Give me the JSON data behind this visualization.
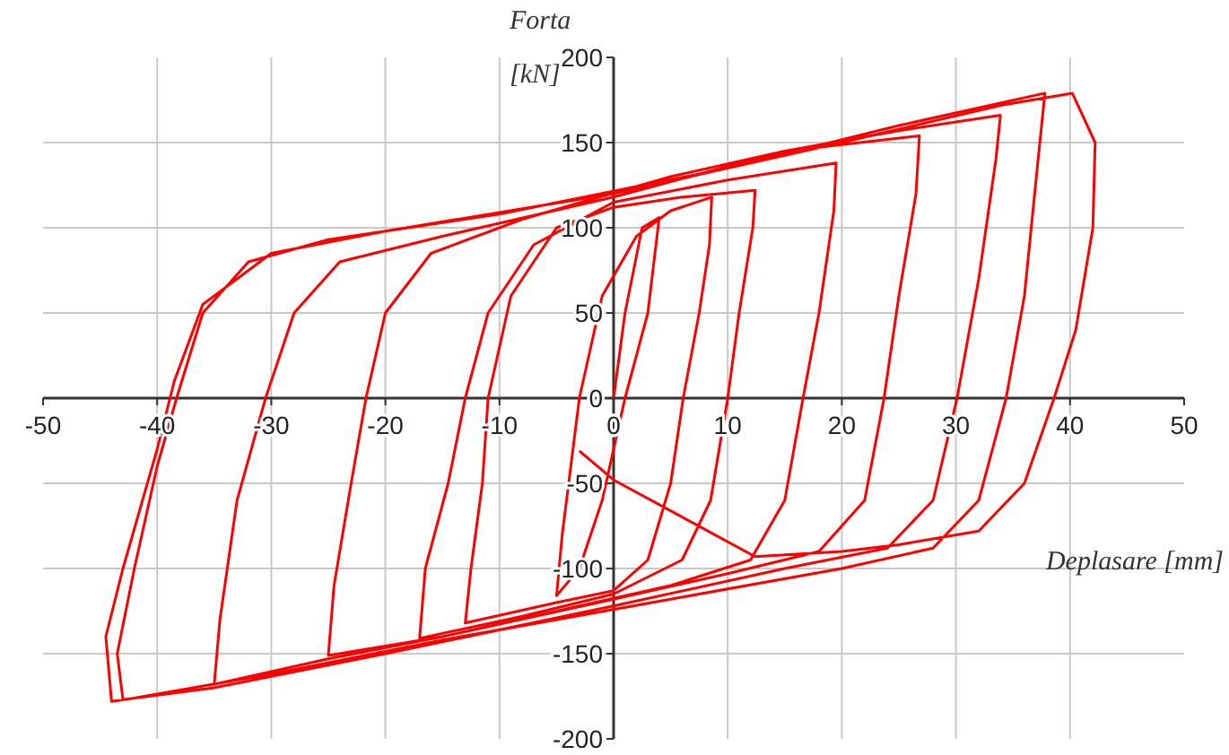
{
  "chart_data": {
    "type": "line",
    "xlabel": "Deplasare [mm]",
    "ylabel": "Forta [kN]",
    "xlim": [
      -50,
      50
    ],
    "ylim": [
      -200,
      200
    ],
    "xticks": [
      -50,
      -40,
      -30,
      -20,
      -10,
      0,
      10,
      20,
      30,
      40,
      50
    ],
    "yticks": [
      -200,
      -150,
      -100,
      -50,
      0,
      50,
      100,
      150,
      200
    ],
    "grid": true,
    "marker": "none",
    "line_style": "solid",
    "series": [
      {
        "color": "#ff0000",
        "x": [
          0,
          1,
          2.5,
          4,
          3,
          1,
          -1,
          -3,
          -5,
          -4.5,
          -3,
          -1,
          2,
          5,
          8.6,
          8.4,
          7.5,
          6.1,
          5,
          3,
          0,
          -5,
          -13,
          -12.5,
          -11.5,
          -11,
          -9,
          -5,
          0,
          6,
          12.4,
          12.2,
          11,
          10,
          8.5,
          6,
          0,
          -8,
          -17,
          -16.5,
          -14.5,
          -13,
          -11,
          -7,
          0,
          10,
          19.5,
          19.3,
          18,
          16.6,
          15,
          12,
          5,
          -5,
          -15,
          -25,
          -24.5,
          -23,
          -21.7,
          -20,
          -16,
          -8,
          5,
          15,
          26.8,
          26.5,
          25,
          23.7,
          22,
          18,
          10,
          0,
          -15,
          -25,
          -35,
          -34.5,
          -33,
          -30.5,
          -28,
          -24,
          -15,
          0,
          15,
          25,
          33.9,
          33.5,
          32,
          30.1,
          28,
          24,
          15,
          0,
          -20,
          -35,
          -43,
          -43.5,
          -42,
          -40,
          -38.3,
          -36,
          -32,
          -25,
          -10,
          10,
          25,
          37.8,
          37.2,
          36,
          34.4,
          32,
          28,
          20,
          5,
          -15,
          -30,
          -42,
          -44,
          -44.5,
          -43,
          -40,
          -38.5,
          -36,
          -30,
          -20,
          0,
          20,
          34,
          40.2,
          42.2,
          42,
          40.5,
          38.6,
          36,
          32,
          25,
          20,
          12.4,
          0,
          -3
        ],
        "values": [
          0,
          50,
          100,
          106,
          50,
          0,
          -60,
          -100,
          -116,
          -80,
          0,
          60,
          95,
          110,
          118,
          90,
          50,
          0,
          -50,
          -95,
          -113,
          -120,
          -132,
          -100,
          -50,
          0,
          60,
          100,
          112,
          118,
          122,
          100,
          50,
          0,
          -60,
          -95,
          -115,
          -128,
          -141,
          -100,
          -50,
          0,
          50,
          90,
          115,
          128,
          138,
          110,
          50,
          0,
          -60,
          -95,
          -110,
          -125,
          -140,
          -151,
          -110,
          -50,
          0,
          50,
          85,
          105,
          130,
          145,
          154,
          120,
          60,
          0,
          -60,
          -90,
          -103,
          -118,
          -140,
          -153,
          -168,
          -130,
          -60,
          0,
          50,
          80,
          95,
          118,
          145,
          157,
          166,
          140,
          70,
          0,
          -60,
          -88,
          -100,
          -122,
          -150,
          -170,
          -177,
          -150,
          -100,
          -40,
          0,
          50,
          80,
          93,
          108,
          135,
          160,
          179,
          140,
          60,
          0,
          -60,
          -88,
          -100,
          -118,
          -142,
          -162,
          -176,
          -178,
          -140,
          -100,
          -30,
          10,
          55,
          85,
          98,
          120,
          150,
          172,
          179,
          150,
          100,
          40,
          0,
          -50,
          -78,
          -86,
          -90,
          -93,
          -48,
          -31
        ]
      }
    ]
  }
}
